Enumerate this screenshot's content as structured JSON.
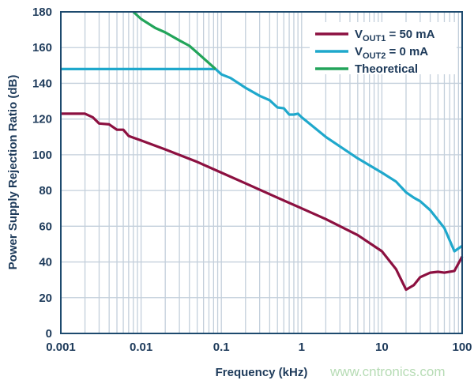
{
  "chart_data": {
    "type": "line",
    "xlabel": "Frequency (kHz)",
    "ylabel": "Power Supply Rejection Ratio (dB)",
    "xscale": "log",
    "xlim": [
      0.001,
      100
    ],
    "ylim": [
      0,
      180
    ],
    "xticks": [
      {
        "v": 0.001,
        "label": "0.001"
      },
      {
        "v": 0.01,
        "label": "0.01"
      },
      {
        "v": 0.1,
        "label": "0.1"
      },
      {
        "v": 1,
        "label": "1"
      },
      {
        "v": 10,
        "label": "10"
      },
      {
        "v": 100,
        "label": "100"
      }
    ],
    "yticks": [
      0,
      20,
      40,
      60,
      80,
      100,
      120,
      140,
      160,
      180
    ],
    "grid": true,
    "legend_position": "top-right",
    "series": [
      {
        "name": "VOUT1 = 50 mA",
        "name_main": "V",
        "name_sub": "OUT1",
        "name_rest": " = 50 mA",
        "color": "#8c1040",
        "x": [
          0.001,
          0.002,
          0.0025,
          0.003,
          0.004,
          0.005,
          0.006,
          0.007,
          0.01,
          0.02,
          0.05,
          0.1,
          0.2,
          0.5,
          1,
          2,
          5,
          10,
          15,
          20,
          25,
          30,
          40,
          50,
          60,
          80,
          100
        ],
        "y": [
          123,
          123,
          121,
          117.5,
          117,
          114,
          114,
          110.5,
          108,
          103,
          96,
          90,
          84,
          76,
          70,
          64,
          55,
          46,
          36,
          24.5,
          27,
          31.5,
          34,
          34.5,
          34,
          35,
          43
        ]
      },
      {
        "name": "VOUT2 = 0 mA",
        "name_main": "V",
        "name_sub": "OUT2",
        "name_rest": " = 0 mA",
        "color": "#1fa8cc",
        "x": [
          0.001,
          0.085,
          0.1,
          0.13,
          0.2,
          0.3,
          0.4,
          0.5,
          0.6,
          0.7,
          0.8,
          0.9,
          1,
          2,
          5,
          10,
          15,
          20,
          25,
          30,
          40,
          50,
          60,
          80,
          100
        ],
        "y": [
          148,
          148,
          145,
          143,
          137.5,
          133,
          130.5,
          126.5,
          126,
          122.5,
          122.5,
          123,
          121,
          110,
          98,
          90,
          85,
          79,
          76,
          74,
          69,
          63.5,
          59,
          46,
          49
        ]
      },
      {
        "name": "Theoretical",
        "name_main": "Theoretical",
        "name_sub": "",
        "name_rest": "",
        "color": "#22a45a",
        "x": [
          0.008,
          0.01,
          0.015,
          0.02,
          0.03,
          0.04,
          0.06,
          0.085
        ],
        "y": [
          180,
          176,
          171,
          168.5,
          164,
          161,
          154,
          148
        ]
      }
    ]
  },
  "watermark": "www.cntronics.com"
}
